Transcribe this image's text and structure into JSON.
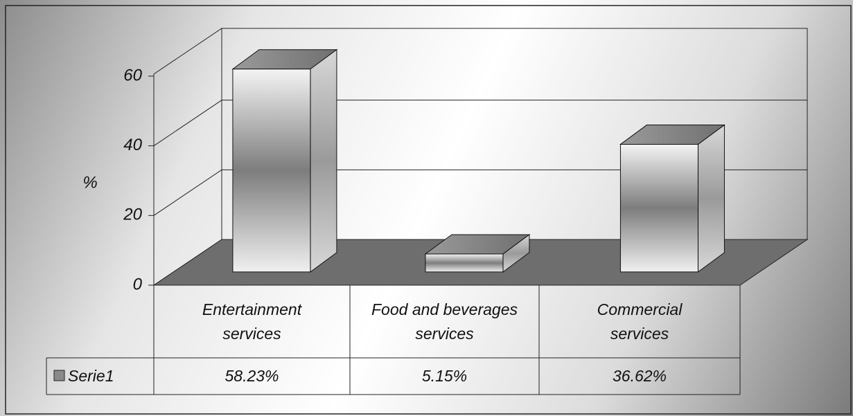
{
  "chart_data": {
    "type": "bar3d",
    "y_label": "%",
    "categories": [
      "Entertainment\nservices",
      "Food and beverages\nservices",
      "Commercial\nservices"
    ],
    "series": [
      {
        "name": "Serie1",
        "color": "#8a8a8a",
        "values": [
          58.23,
          5.15,
          36.62
        ],
        "value_labels": [
          "58.23%",
          "5.15%",
          "36.62%"
        ]
      }
    ],
    "ylim": [
      0,
      60
    ],
    "yticks": [
      0,
      20,
      40,
      60
    ],
    "grid": true,
    "legend": "table"
  }
}
